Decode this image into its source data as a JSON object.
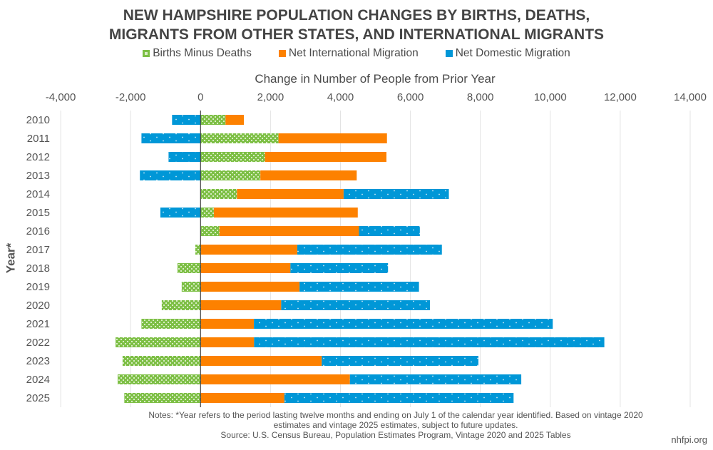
{
  "chart_data": {
    "type": "bar",
    "orientation": "horizontal",
    "stacked": true,
    "title": "NEW HAMPSHIRE POPULATION CHANGES BY BIRTHS, DEATHS, MIGRANTS FROM OTHER STATES, AND INTERNATIONAL MIGRANTS",
    "title_lines": [
      "NEW HAMPSHIRE POPULATION CHANGES BY BIRTHS, DEATHS,",
      "MIGRANTS FROM OTHER STATES, AND INTERNATIONAL MIGRANTS"
    ],
    "xlabel": "Change in Number of People from Prior Year",
    "ylabel": "Year*",
    "xlim": [
      -4000,
      14000
    ],
    "x_ticks": [
      -4000,
      -2000,
      0,
      2000,
      4000,
      6000,
      8000,
      10000,
      12000,
      14000
    ],
    "x_tick_labels": [
      "-4,000",
      "-2,000",
      "0",
      "2,000",
      "4,000",
      "6,000",
      "8,000",
      "10,000",
      "12,000",
      "14,000"
    ],
    "grid": "vertical",
    "legend_position": "top",
    "categories": [
      "2010",
      "2011",
      "2012",
      "2013",
      "2014",
      "2015",
      "2016",
      "2017",
      "2018",
      "2019",
      "2020",
      "2021",
      "2022",
      "2023",
      "2024",
      "2025"
    ],
    "series": [
      {
        "name": "Births Minus Deaths",
        "color": "#7dbf45",
        "pattern": "checker",
        "values": [
          714,
          2230,
          1840,
          1710,
          1040,
          380,
          540,
          -150,
          -660,
          -540,
          -1110,
          -1690,
          -2430,
          -2230,
          -2370,
          -2180
        ]
      },
      {
        "name": "Net International Migration",
        "color": "#fd8100",
        "pattern": "solid",
        "values": [
          525,
          3100,
          3475,
          2755,
          3050,
          4115,
          3990,
          2765,
          2570,
          2830,
          2305,
          1525,
          1530,
          3465,
          4270,
          2395
        ]
      },
      {
        "name": "Net Domestic Migration",
        "color": "#0097d7",
        "pattern": "dots",
        "values": [
          -815,
          -1690,
          -915,
          -1735,
          3010,
          -1150,
          1740,
          4135,
          2790,
          3415,
          4255,
          8545,
          10015,
          4480,
          4900,
          6555
        ]
      }
    ]
  },
  "notes": {
    "line1": "Notes: *Year refers to the period lasting twelve months and ending on July 1 of the calendar year identified. Based on vintage 2020",
    "line2": "estimates and vintage 2025 estimates, subject to future updates.",
    "source": "Source: U.S. Census Bureau, Population Estimates Program, Vintage 2020 and 2025 Tables"
  },
  "brand": "nhfpi.org"
}
